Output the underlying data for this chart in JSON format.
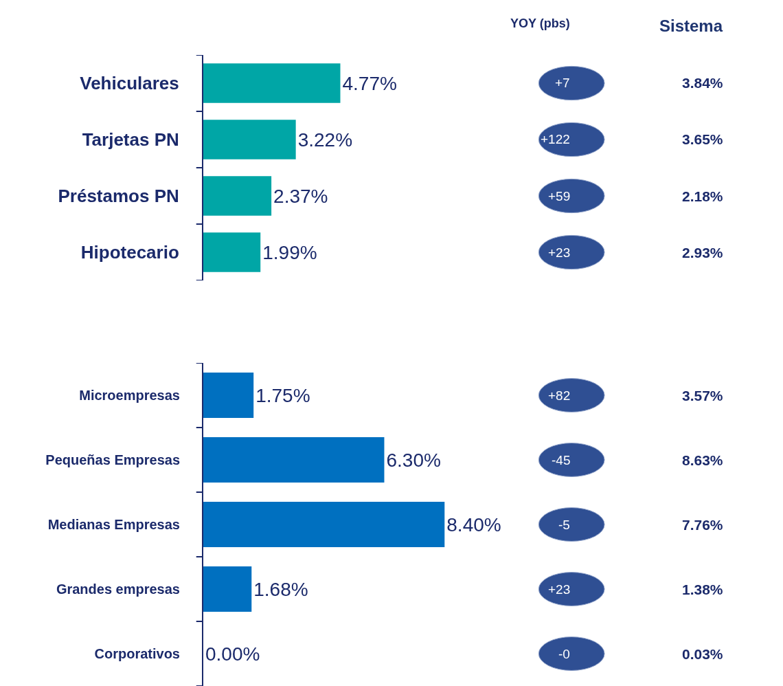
{
  "chart_data": [
    {
      "type": "bar",
      "orientation": "horizontal",
      "categories": [
        "Vehiculares",
        "Tarjetas PN",
        "Préstamos PN",
        "Hipotecario"
      ],
      "values": [
        4.77,
        3.22,
        2.37,
        1.99
      ],
      "color": "#00a6a6",
      "value_labels": [
        "4.77%",
        "3.22%",
        "2.37%",
        "1.99%"
      ],
      "tick_labels": "y",
      "annotations": [
        "YOY (pbs)",
        "Sistema",
        "+7",
        "3.84%",
        "+122",
        "3.65%",
        "+59",
        "2.18%",
        "+23",
        "2.93%"
      ]
    },
    {
      "type": "bar",
      "orientation": "horizontal",
      "categories": [
        "Microempresas",
        "Pequeñas Empresas",
        "Medianas Empresas",
        "Grandes empresas",
        "Corporativos"
      ],
      "values": [
        1.75,
        6.3,
        8.4,
        1.68,
        0.0
      ],
      "color": "#0070c0",
      "value_labels": [
        "1.75%",
        "6.30%",
        "8.40%",
        "1.68%",
        "0.00%"
      ],
      "tick_labels": "y",
      "annotations": [
        "+82",
        "3.57%",
        "-45",
        "8.63%",
        "-5",
        "7.76%",
        "+23",
        "1.38%",
        "-0",
        "0.03%"
      ]
    }
  ]
}
